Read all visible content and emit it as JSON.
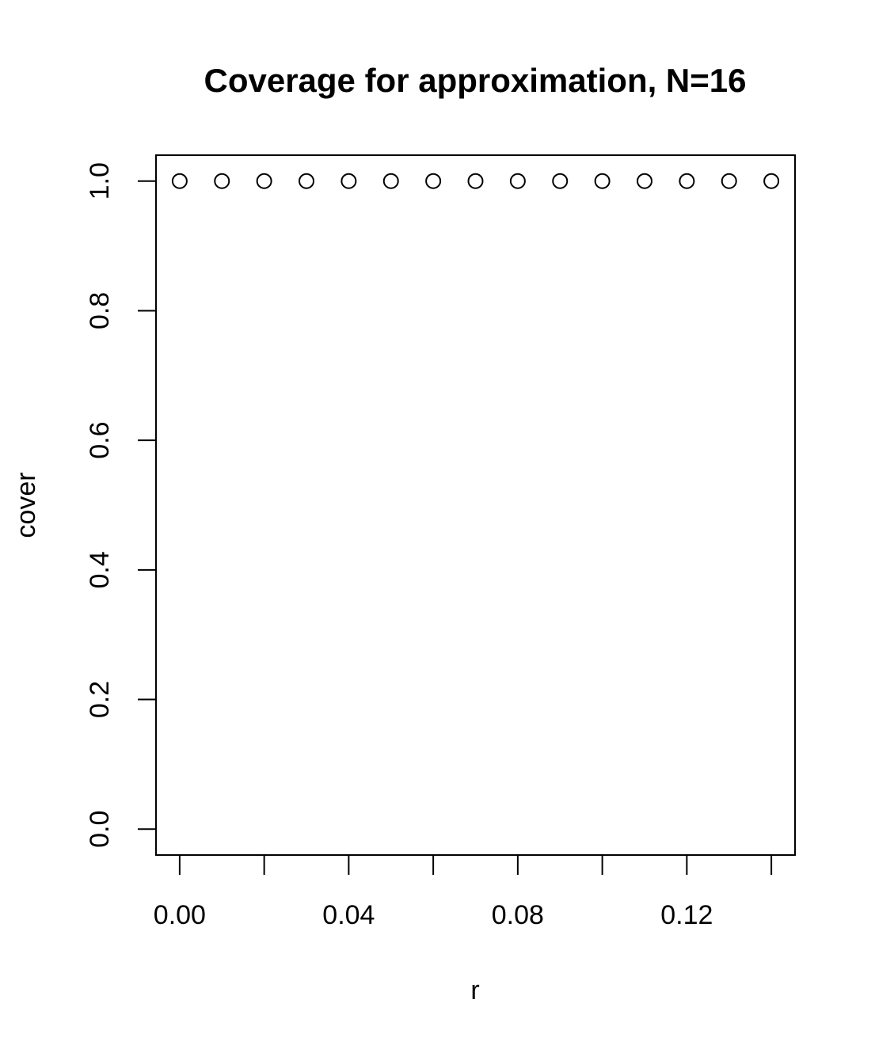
{
  "chart_data": {
    "type": "scatter",
    "title": "Coverage for approximation, N=16",
    "xlabel": "r",
    "ylabel": "cover",
    "xlim": [
      -0.0056,
      0.1456
    ],
    "ylim": [
      -0.04,
      1.04
    ],
    "x_ticks": [
      0.0,
      0.02,
      0.04,
      0.06,
      0.08,
      0.1,
      0.12,
      0.14
    ],
    "x_tick_labels": [
      "0.00",
      "",
      "0.04",
      "",
      "0.08",
      "",
      "0.12",
      ""
    ],
    "y_ticks": [
      0.0,
      0.2,
      0.4,
      0.6,
      0.8,
      1.0
    ],
    "y_tick_labels": [
      "0.0",
      "0.2",
      "0.4",
      "0.6",
      "0.8",
      "1.0"
    ],
    "grid": false,
    "marker": "open-circle",
    "x": [
      0.0,
      0.01,
      0.02,
      0.03,
      0.04,
      0.05,
      0.06,
      0.07,
      0.08,
      0.09,
      0.1,
      0.11,
      0.12,
      0.13,
      0.14
    ],
    "y": [
      1,
      1,
      1,
      1,
      1,
      1,
      1,
      1,
      1,
      1,
      1,
      1,
      1,
      1,
      1
    ]
  }
}
